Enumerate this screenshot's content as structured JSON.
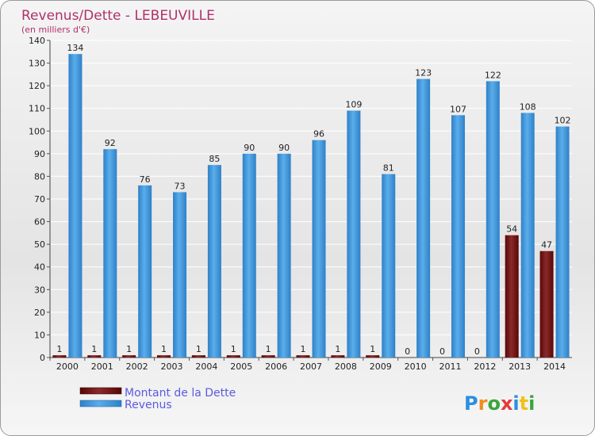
{
  "chart_data": {
    "type": "bar",
    "title": "Revenus/Dette - LEBEUVILLE",
    "subtitle": "(en milliers d'€)",
    "categories": [
      "2000",
      "2001",
      "2002",
      "2003",
      "2004",
      "2005",
      "2006",
      "2007",
      "2008",
      "2009",
      "2010",
      "2011",
      "2012",
      "2013",
      "2014"
    ],
    "series": [
      {
        "name": "Montant de la Dette",
        "color": "#7a1010",
        "values": [
          1,
          1,
          1,
          1,
          1,
          1,
          1,
          1,
          1,
          1,
          0,
          0,
          0,
          54,
          47
        ]
      },
      {
        "name": "Revenus",
        "color": "#3a98dc",
        "values": [
          134,
          92,
          76,
          73,
          85,
          90,
          90,
          96,
          109,
          81,
          123,
          107,
          122,
          108,
          102
        ]
      }
    ],
    "ylim": [
      0,
      140
    ],
    "yticks": [
      0,
      10,
      20,
      30,
      40,
      50,
      60,
      70,
      80,
      90,
      100,
      110,
      120,
      130,
      140
    ],
    "grid": true,
    "legend_position": "bottom-left"
  },
  "logo": {
    "text": "Proxiti"
  }
}
